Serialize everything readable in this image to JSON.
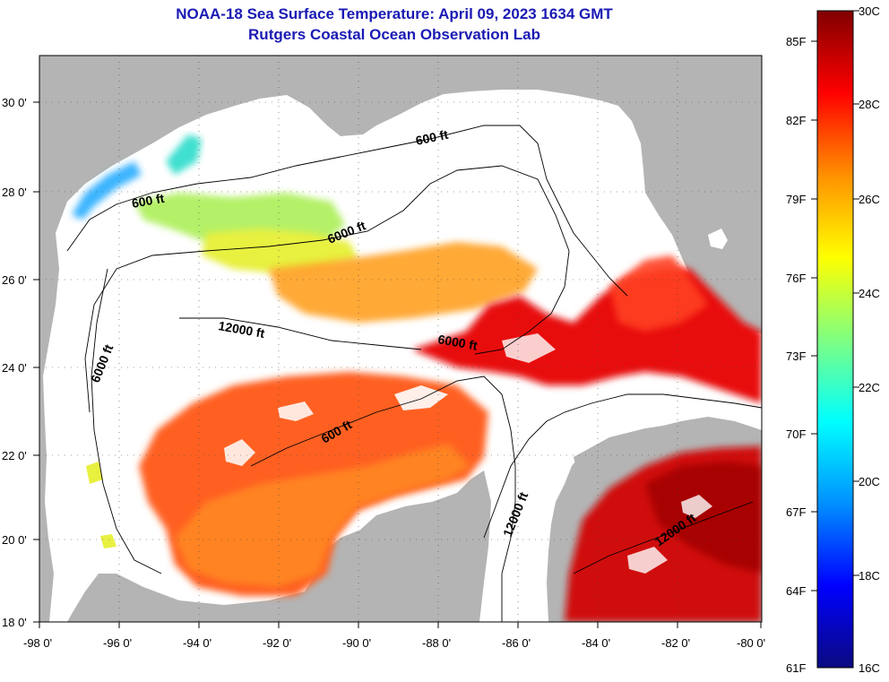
{
  "title_line1": "NOAA-18 Sea Surface Temperature:  April 09, 2023 1634 GMT",
  "title_line2": "Rutgers Coastal Ocean Observation Lab",
  "lon_labels": [
    "-98 0'",
    "-96 0'",
    "-94 0'",
    "-92 0'",
    "-90 0'",
    "-88 0'",
    "-86 0'",
    "-84 0'",
    "-82 0'",
    "-80 0'"
  ],
  "lat_labels": [
    "30 0'",
    "28 0'",
    "26 0'",
    "24 0'",
    "22 0'",
    "20 0'",
    "18 0'"
  ],
  "contour_labels": {
    "c1": "600 ft",
    "c2": "600 ft",
    "c3": "6000 ft",
    "c4": "12000 ft",
    "c5": "6000 ft",
    "c6": "6000 ft",
    "c7": "600 ft",
    "c8": "12000 ft",
    "c9": "12000 ft"
  },
  "colorbar": {
    "f_labels": [
      "85F",
      "82F",
      "79F",
      "76F",
      "73F",
      "70F",
      "67F",
      "64F",
      "61F"
    ],
    "c_labels": [
      "30C",
      "28C",
      "26C",
      "24C",
      "22C",
      "20C",
      "18C",
      "16C"
    ],
    "colors": [
      "#0a0a80",
      "#0000ff",
      "#0090ff",
      "#00ffff",
      "#80ff80",
      "#ffff00",
      "#ff9000",
      "#ff0000",
      "#800000"
    ]
  },
  "colors": {
    "land": "#b4b4b4",
    "cloud": "#ffffff",
    "title": "#1a1ab4"
  }
}
